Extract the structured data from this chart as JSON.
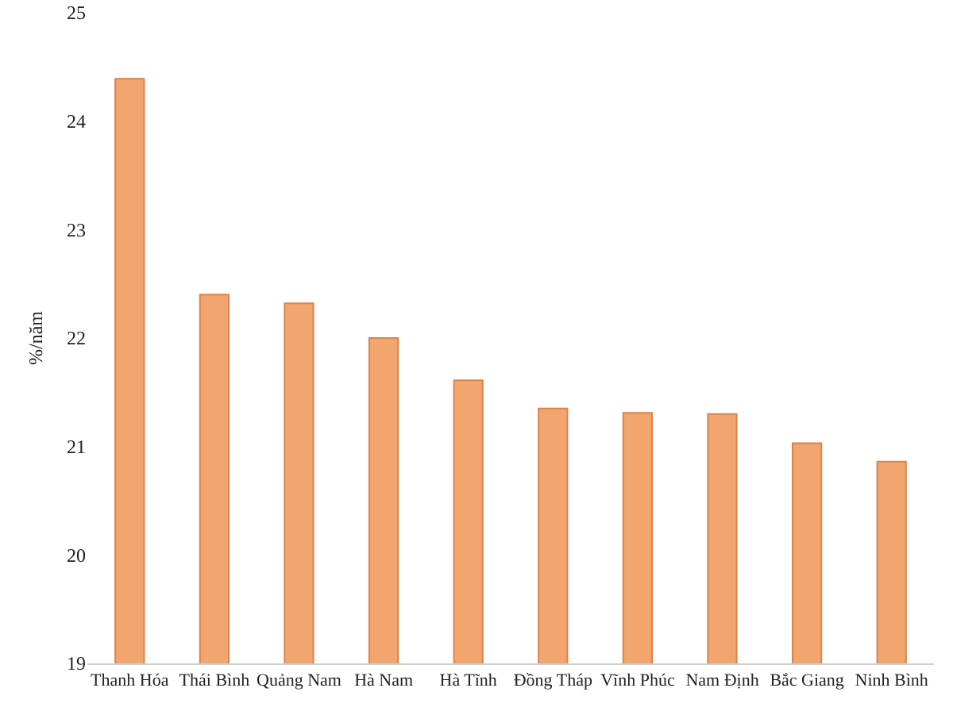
{
  "chart_data": {
    "type": "bar",
    "ylabel": "%/năm",
    "categories": [
      "Thanh Hóa",
      "Thái Bình",
      "Quảng Nam",
      "Hà Nam",
      "Hà Tĩnh",
      "Đồng Tháp",
      "Vĩnh Phúc",
      "Nam Định",
      "Bắc Giang",
      "Ninh Bình"
    ],
    "values": [
      24.39,
      22.4,
      22.32,
      22.0,
      21.61,
      21.35,
      21.31,
      21.3,
      21.03,
      20.86
    ],
    "color": "#f2a56e",
    "ylim": [
      19,
      25
    ],
    "yticks": [
      19,
      20,
      21,
      22,
      23,
      24,
      25
    ],
    "grid": false
  }
}
